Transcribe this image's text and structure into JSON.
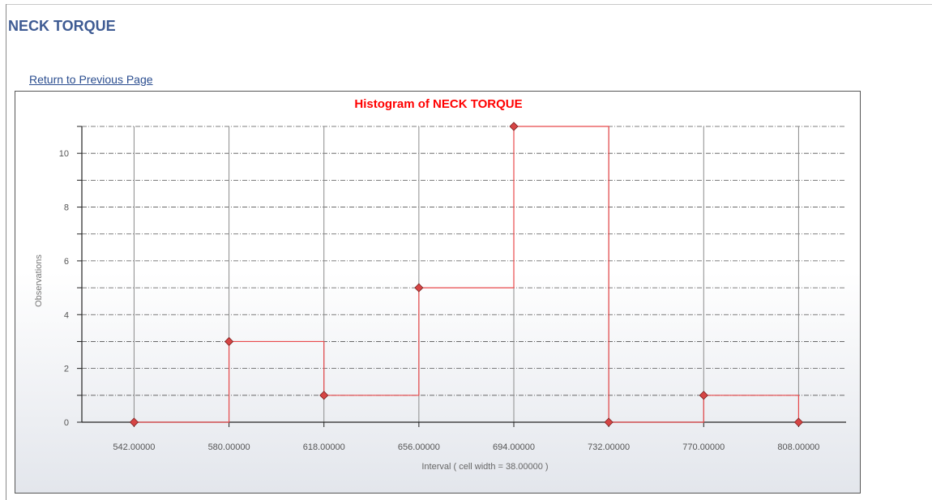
{
  "page": {
    "title": "NECK TORQUE",
    "return_link": "Return to Previous Page"
  },
  "chart_data": {
    "type": "line",
    "title": "Histogram of NECK TORQUE",
    "xlabel": "Interval ( cell width = 38.00000 )",
    "ylabel": "Observations",
    "x": [
      542,
      580,
      618,
      656,
      694,
      732,
      770,
      808
    ],
    "x_tick_labels": [
      "542.00000",
      "580.00000",
      "618.00000",
      "656.00000",
      "694.00000",
      "732.00000",
      "770.00000",
      "808.00000"
    ],
    "series": [
      {
        "values": [
          0,
          3,
          1,
          5,
          11,
          0,
          1,
          0
        ]
      }
    ],
    "step": true,
    "ylim": [
      0,
      11
    ],
    "y_ticks": [
      0,
      2,
      4,
      6,
      8,
      10
    ],
    "grid": true,
    "colors": {
      "title": "#ff0000",
      "line": "#e8494b",
      "marker": "#d64545",
      "grid": "#555555",
      "vgrid": "#8c8c8c",
      "page_title": "#3e5b93",
      "link": "#2a4d8f"
    }
  }
}
